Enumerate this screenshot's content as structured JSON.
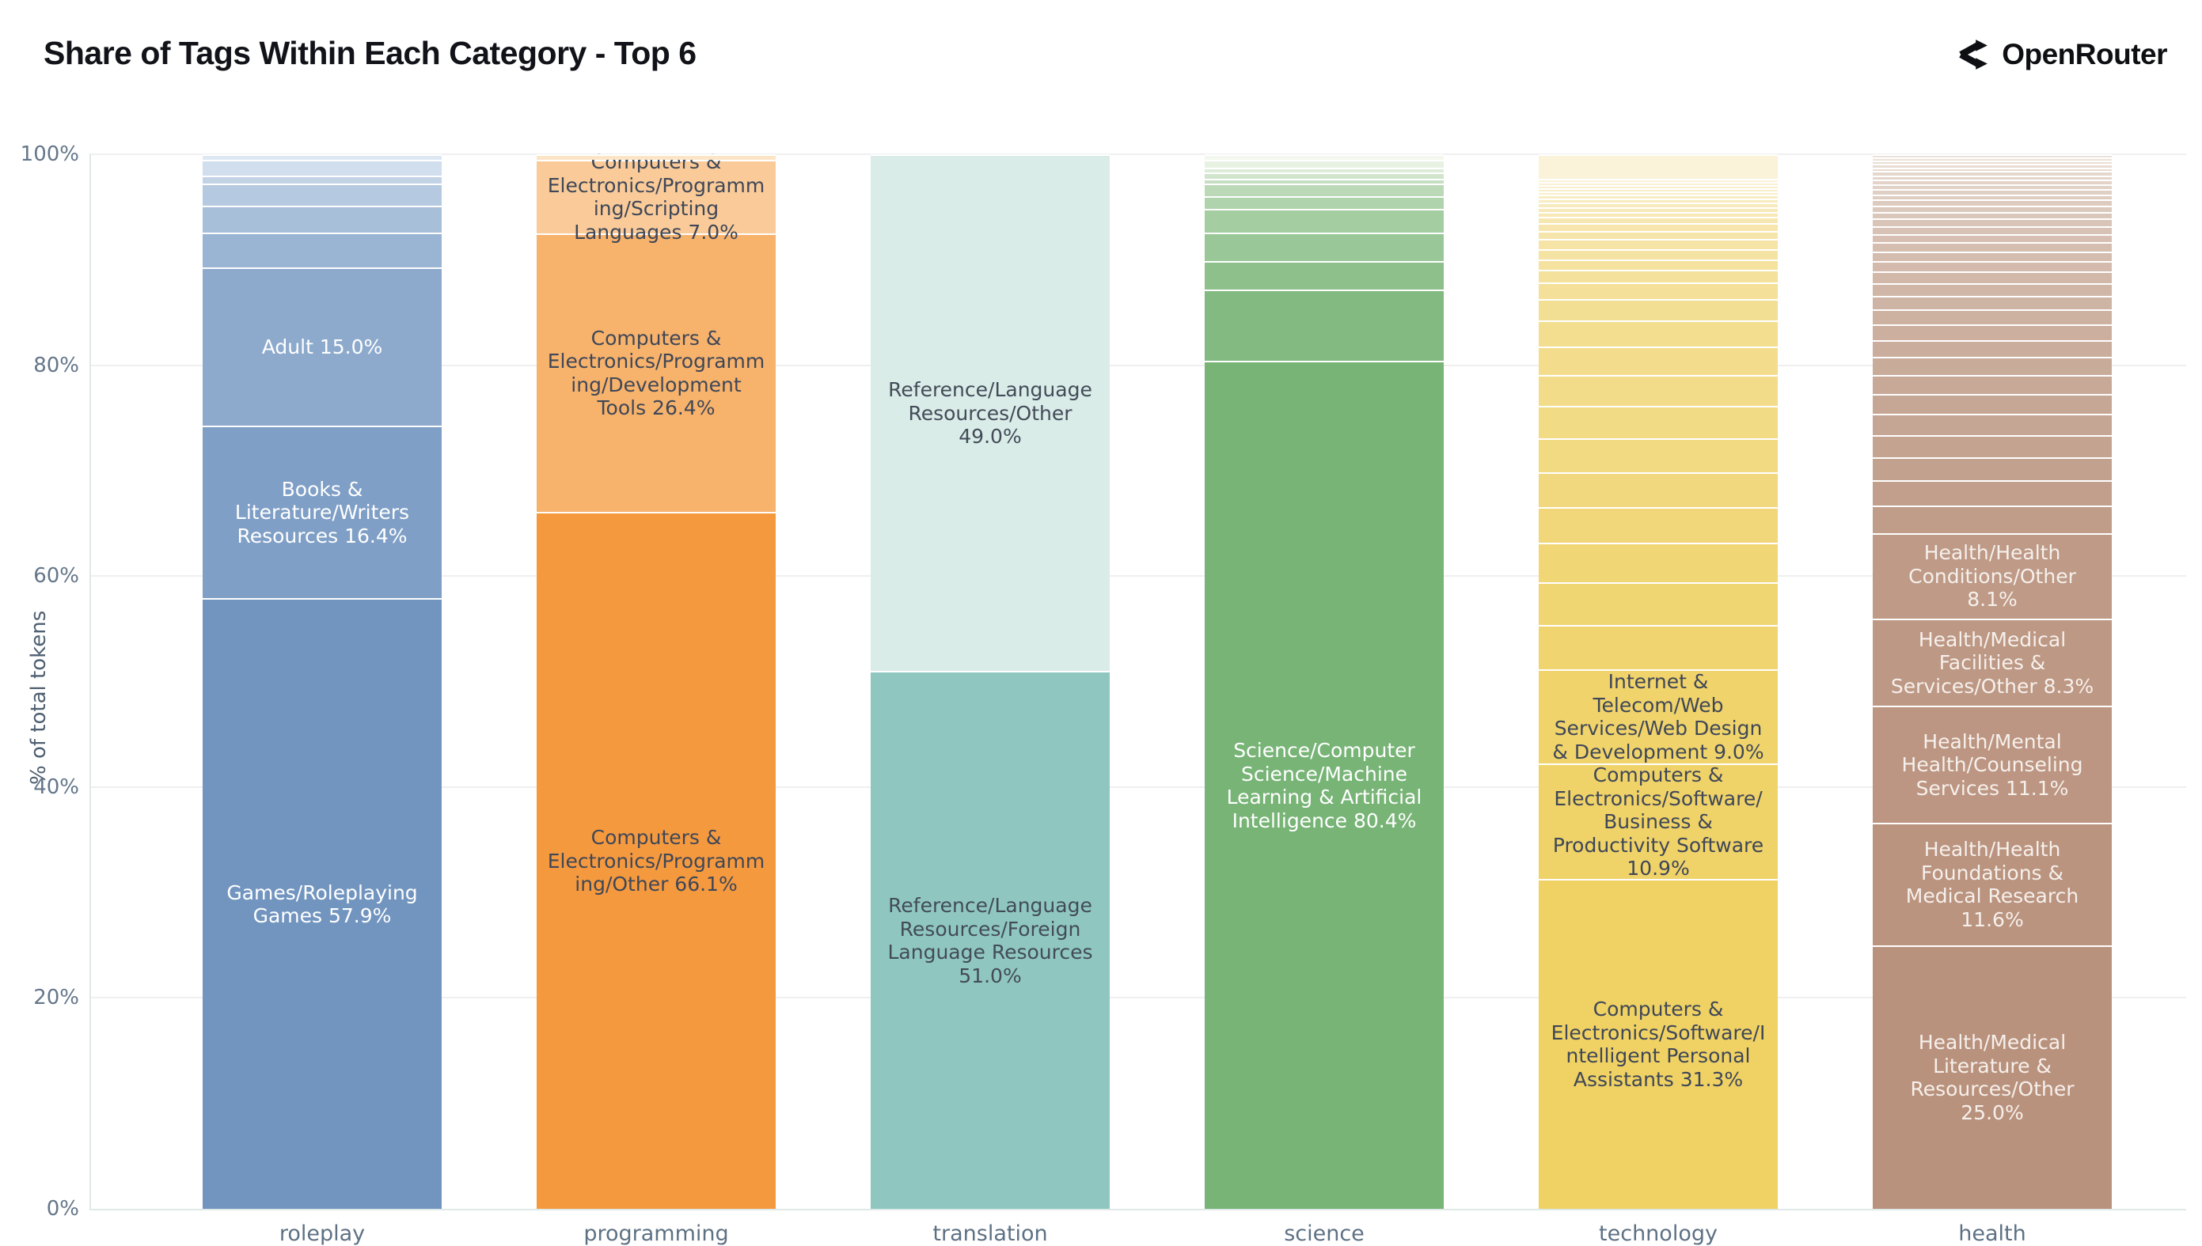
{
  "header": {
    "title": "Share of Tags Within Each Category - Top 6",
    "brand": "OpenRouter"
  },
  "chart_data": {
    "type": "bar",
    "stacked": true,
    "percent_stacked": true,
    "title": "Share of Tags Within Each Category - Top 6",
    "xlabel": "",
    "ylabel": "% of total tokens",
    "ylim": [
      0,
      100
    ],
    "yticks": [
      "0%",
      "20%",
      "40%",
      "60%",
      "80%",
      "100%"
    ],
    "grid": "horizontal",
    "legend": "none",
    "categories": [
      "roleplay",
      "programming",
      "translation",
      "science",
      "technology",
      "health"
    ],
    "bars": [
      {
        "category": "roleplay",
        "color_dark": "#7295bf",
        "color_light": "#dde8f3",
        "text_color": "#ffffff",
        "segments": [
          {
            "value": 57.9,
            "label": "Games/Roleplaying Games 57.9%"
          },
          {
            "value": 16.4,
            "label": "Books & Literature/Writers Resources 16.4%"
          },
          {
            "value": 15.0,
            "label": "Adult 15.0%"
          },
          {
            "value": 3.3
          },
          {
            "value": 2.5
          },
          {
            "value": 2.1
          },
          {
            "value": 0.8
          },
          {
            "value": 1.5
          },
          {
            "value": 0.5
          }
        ]
      },
      {
        "category": "programming",
        "color_dark": "#f5993f",
        "color_light": "#fce4c6",
        "text_color": "#3f4757",
        "segments": [
          {
            "value": 66.1,
            "label": "Computers & Electronics/Programming/Other 66.1%"
          },
          {
            "value": 26.4,
            "label": "Computers & Electronics/Programming/Development Tools 26.4%"
          },
          {
            "value": 7.0,
            "label": "Computers & Electronics/Programming/Scripting Languages 7.0%"
          },
          {
            "value": 0.5
          }
        ]
      },
      {
        "category": "translation",
        "color_dark": "#8fc7c0",
        "color_light": "#d9ece8",
        "text_color": "#434b58",
        "segments": [
          {
            "value": 51.0,
            "label": "Reference/Language Resources/Foreign Language Resources 51.0%"
          },
          {
            "value": 49.0,
            "label": "Reference/Language Resources/Other 49.0%"
          }
        ]
      },
      {
        "category": "science",
        "color_dark": "#77b476",
        "color_light": "#f3f8ee",
        "text_color": "#ffffff",
        "segments": [
          {
            "value": 80.4,
            "label": "Science/Computer Science/Machine Learning & Artificial Intelligence 80.4%"
          },
          {
            "value": 6.8
          },
          {
            "value": 2.7
          },
          {
            "value": 2.7
          },
          {
            "value": 2.2
          },
          {
            "value": 1.2
          },
          {
            "value": 1.2
          },
          {
            "value": 0.5
          },
          {
            "value": 0.6
          },
          {
            "value": 0.4
          },
          {
            "value": 0.75
          },
          {
            "value": 0.55
          }
        ]
      },
      {
        "category": "technology",
        "color_dark": "#efd164",
        "color_light": "#faf3da",
        "text_color": "#3f4757",
        "segments": [
          {
            "value": 31.3,
            "label": "Computers & Electronics/Software/Intelligent Personal Assistants 31.3%"
          },
          {
            "value": 10.9,
            "label": "Computers & Electronics/Software/Business & Productivity Software 10.9%"
          },
          {
            "value": 9.0,
            "label": "Internet & Telecom/Web Services/Web Design & Development 9.0%"
          },
          {
            "value": 4.2
          },
          {
            "value": 4.0
          },
          {
            "value": 3.8
          },
          {
            "value": 3.35
          },
          {
            "value": 3.3
          },
          {
            "value": 3.2
          },
          {
            "value": 3.1
          },
          {
            "value": 2.9
          },
          {
            "value": 2.7
          },
          {
            "value": 2.5
          },
          {
            "value": 2.0
          },
          {
            "value": 1.6
          },
          {
            "value": 1.2
          },
          {
            "value": 1.0
          },
          {
            "value": 0.95
          },
          {
            "value": 0.95
          },
          {
            "value": 0.8
          },
          {
            "value": 0.7
          },
          {
            "value": 0.6
          },
          {
            "value": 0.5
          },
          {
            "value": 0.45
          },
          {
            "value": 0.4
          },
          {
            "value": 0.4
          },
          {
            "value": 0.35
          },
          {
            "value": 0.35
          },
          {
            "value": 0.3
          },
          {
            "value": 0.3
          },
          {
            "value": 0.3
          },
          {
            "value": 0.3
          },
          {
            "value": 2.3
          }
        ]
      },
      {
        "category": "health",
        "color_dark": "#b9927d",
        "color_light": "#ece2da",
        "text_color": "#f6f0ec",
        "segments": [
          {
            "value": 25.0,
            "label": "Health/Medical Literature & Resources/Other 25.0%"
          },
          {
            "value": 11.6,
            "label": "Health/Health Foundations & Medical Research 11.6%"
          },
          {
            "value": 11.1,
            "label": "Health/Mental Health/Counseling Services 11.1%"
          },
          {
            "value": 8.3,
            "label": "Health/Medical Facilities & Services/Other 8.3%"
          },
          {
            "value": 8.1,
            "label": "Health/Health Conditions/Other 8.1%"
          },
          {
            "value": 2.6
          },
          {
            "value": 2.4
          },
          {
            "value": 2.2
          },
          {
            "value": 2.1
          },
          {
            "value": 2.0
          },
          {
            "value": 1.9
          },
          {
            "value": 1.8
          },
          {
            "value": 1.7
          },
          {
            "value": 1.6
          },
          {
            "value": 1.5
          },
          {
            "value": 1.4
          },
          {
            "value": 1.3
          },
          {
            "value": 1.2
          },
          {
            "value": 1.1
          },
          {
            "value": 1.0
          },
          {
            "value": 0.9
          },
          {
            "value": 0.85
          },
          {
            "value": 0.8
          },
          {
            "value": 0.75
          },
          {
            "value": 0.7
          },
          {
            "value": 0.65
          },
          {
            "value": 0.6
          },
          {
            "value": 0.55
          },
          {
            "value": 0.5
          },
          {
            "value": 0.5
          },
          {
            "value": 0.45
          },
          {
            "value": 0.45
          },
          {
            "value": 0.4
          },
          {
            "value": 0.4
          },
          {
            "value": 0.35
          },
          {
            "value": 0.35
          },
          {
            "value": 0.3
          },
          {
            "value": 0.3
          },
          {
            "value": 0.3
          }
        ]
      }
    ]
  }
}
